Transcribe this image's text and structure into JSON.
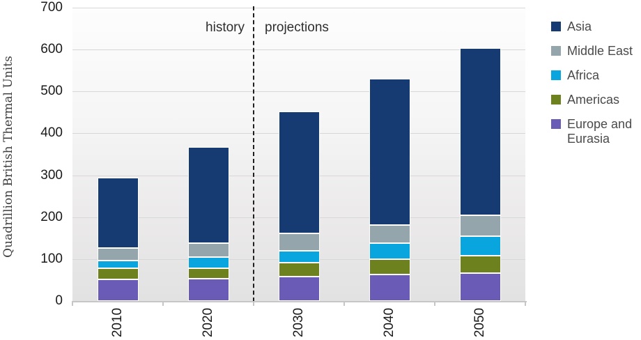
{
  "chart_data": {
    "type": "bar",
    "variant": "stacked",
    "title": "",
    "ylabel": "Quadrillion British Thermal Units",
    "xlabel": "",
    "ylim": [
      0,
      700
    ],
    "ytick_step": 100,
    "yticks": [
      0,
      100,
      200,
      300,
      400,
      500,
      600,
      700
    ],
    "grid": true,
    "legend_position": "right",
    "categories": [
      "2010",
      "2020",
      "2030",
      "2040",
      "2050"
    ],
    "annotations": {
      "history_label": "history",
      "projections_label": "projections",
      "divider_between": [
        "2020",
        "2030"
      ]
    },
    "series": [
      {
        "name": "Asia",
        "color": "#163A72",
        "values": [
          168,
          230,
          291,
          348,
          400
        ]
      },
      {
        "name": "Middle East",
        "color": "#95A5AC",
        "values": [
          30,
          34,
          42,
          44,
          50
        ]
      },
      {
        "name": "Africa",
        "color": "#09A5DE",
        "values": [
          19,
          25,
          29,
          38,
          46
        ]
      },
      {
        "name": "Americas",
        "color": "#6D811E",
        "values": [
          26,
          25,
          33,
          36,
          42
        ]
      },
      {
        "name": "Europe and Eurasia",
        "color": "#6A5CB6",
        "values": [
          52,
          54,
          58,
          64,
          66
        ]
      }
    ],
    "stack_order_bottom_to_top": [
      "Europe and Eurasia",
      "Americas",
      "Africa",
      "Middle East",
      "Asia"
    ],
    "totals": [
      295,
      368,
      453,
      530,
      604
    ]
  }
}
